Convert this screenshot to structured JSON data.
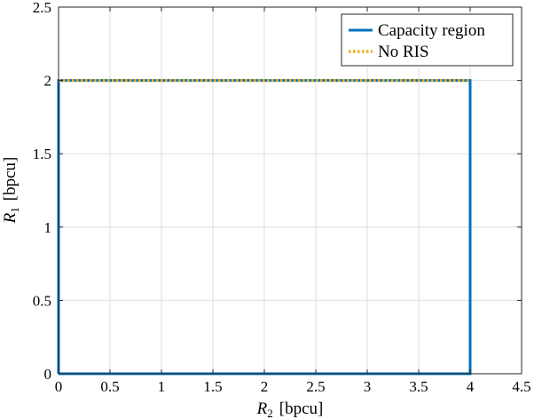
{
  "chart_data": {
    "type": "line",
    "xlabel": {
      "var": "R",
      "sub": "2",
      "unit": "[bpcu]"
    },
    "ylabel": {
      "var": "R",
      "sub": "1",
      "unit": "[bpcu]"
    },
    "xlim": [
      0,
      4.5
    ],
    "ylim": [
      0,
      2.5
    ],
    "xticks": [
      "0",
      "0.5",
      "1",
      "1.5",
      "2",
      "2.5",
      "3",
      "3.5",
      "4",
      "4.5"
    ],
    "yticks": [
      "0",
      "0.5",
      "1",
      "1.5",
      "2",
      "2.5"
    ],
    "grid": true,
    "legend_position": "top-right",
    "series": [
      {
        "name": "Capacity region",
        "color": "#0072BD",
        "style": "solid",
        "x": [
          0,
          0,
          4,
          4,
          0
        ],
        "y": [
          0,
          2,
          2,
          0,
          0
        ]
      },
      {
        "name": "No RIS",
        "color": "#EDB120",
        "style": "dotted",
        "x": [
          0,
          4
        ],
        "y": [
          2,
          2
        ]
      }
    ]
  }
}
